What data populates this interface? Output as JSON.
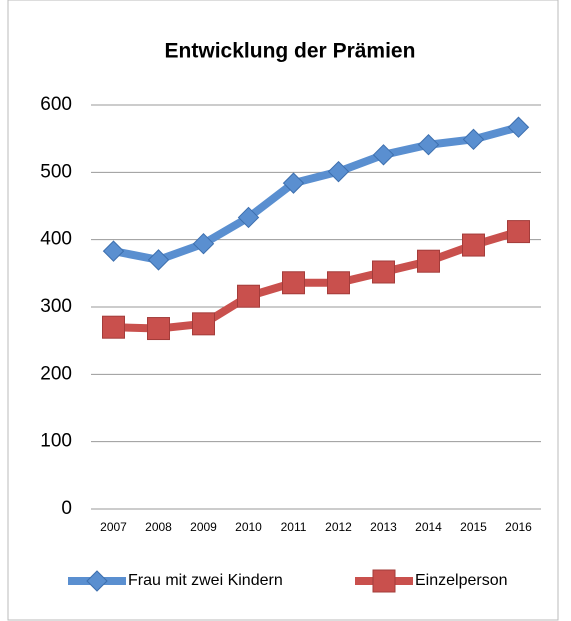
{
  "chart_data": {
    "type": "line",
    "title": "Entwicklung der Prämien",
    "categories": [
      "2007",
      "2008",
      "2009",
      "2010",
      "2011",
      "2012",
      "2013",
      "2014",
      "2015",
      "2016"
    ],
    "series": [
      {
        "name": "Frau mit zwei Kindern",
        "color": "#5a8fd0",
        "values": [
          383,
          370,
          394,
          433,
          484,
          501,
          526,
          541,
          549,
          567
        ]
      },
      {
        "name": "Einzelperson",
        "color": "#c9504d",
        "values": [
          270,
          268,
          275,
          316,
          336,
          336,
          352,
          368,
          392,
          412
        ]
      }
    ],
    "ylim": [
      0,
      600
    ],
    "yticks": [
      0,
      100,
      200,
      300,
      400,
      500,
      600
    ],
    "grid": true,
    "legend": "bottom"
  }
}
